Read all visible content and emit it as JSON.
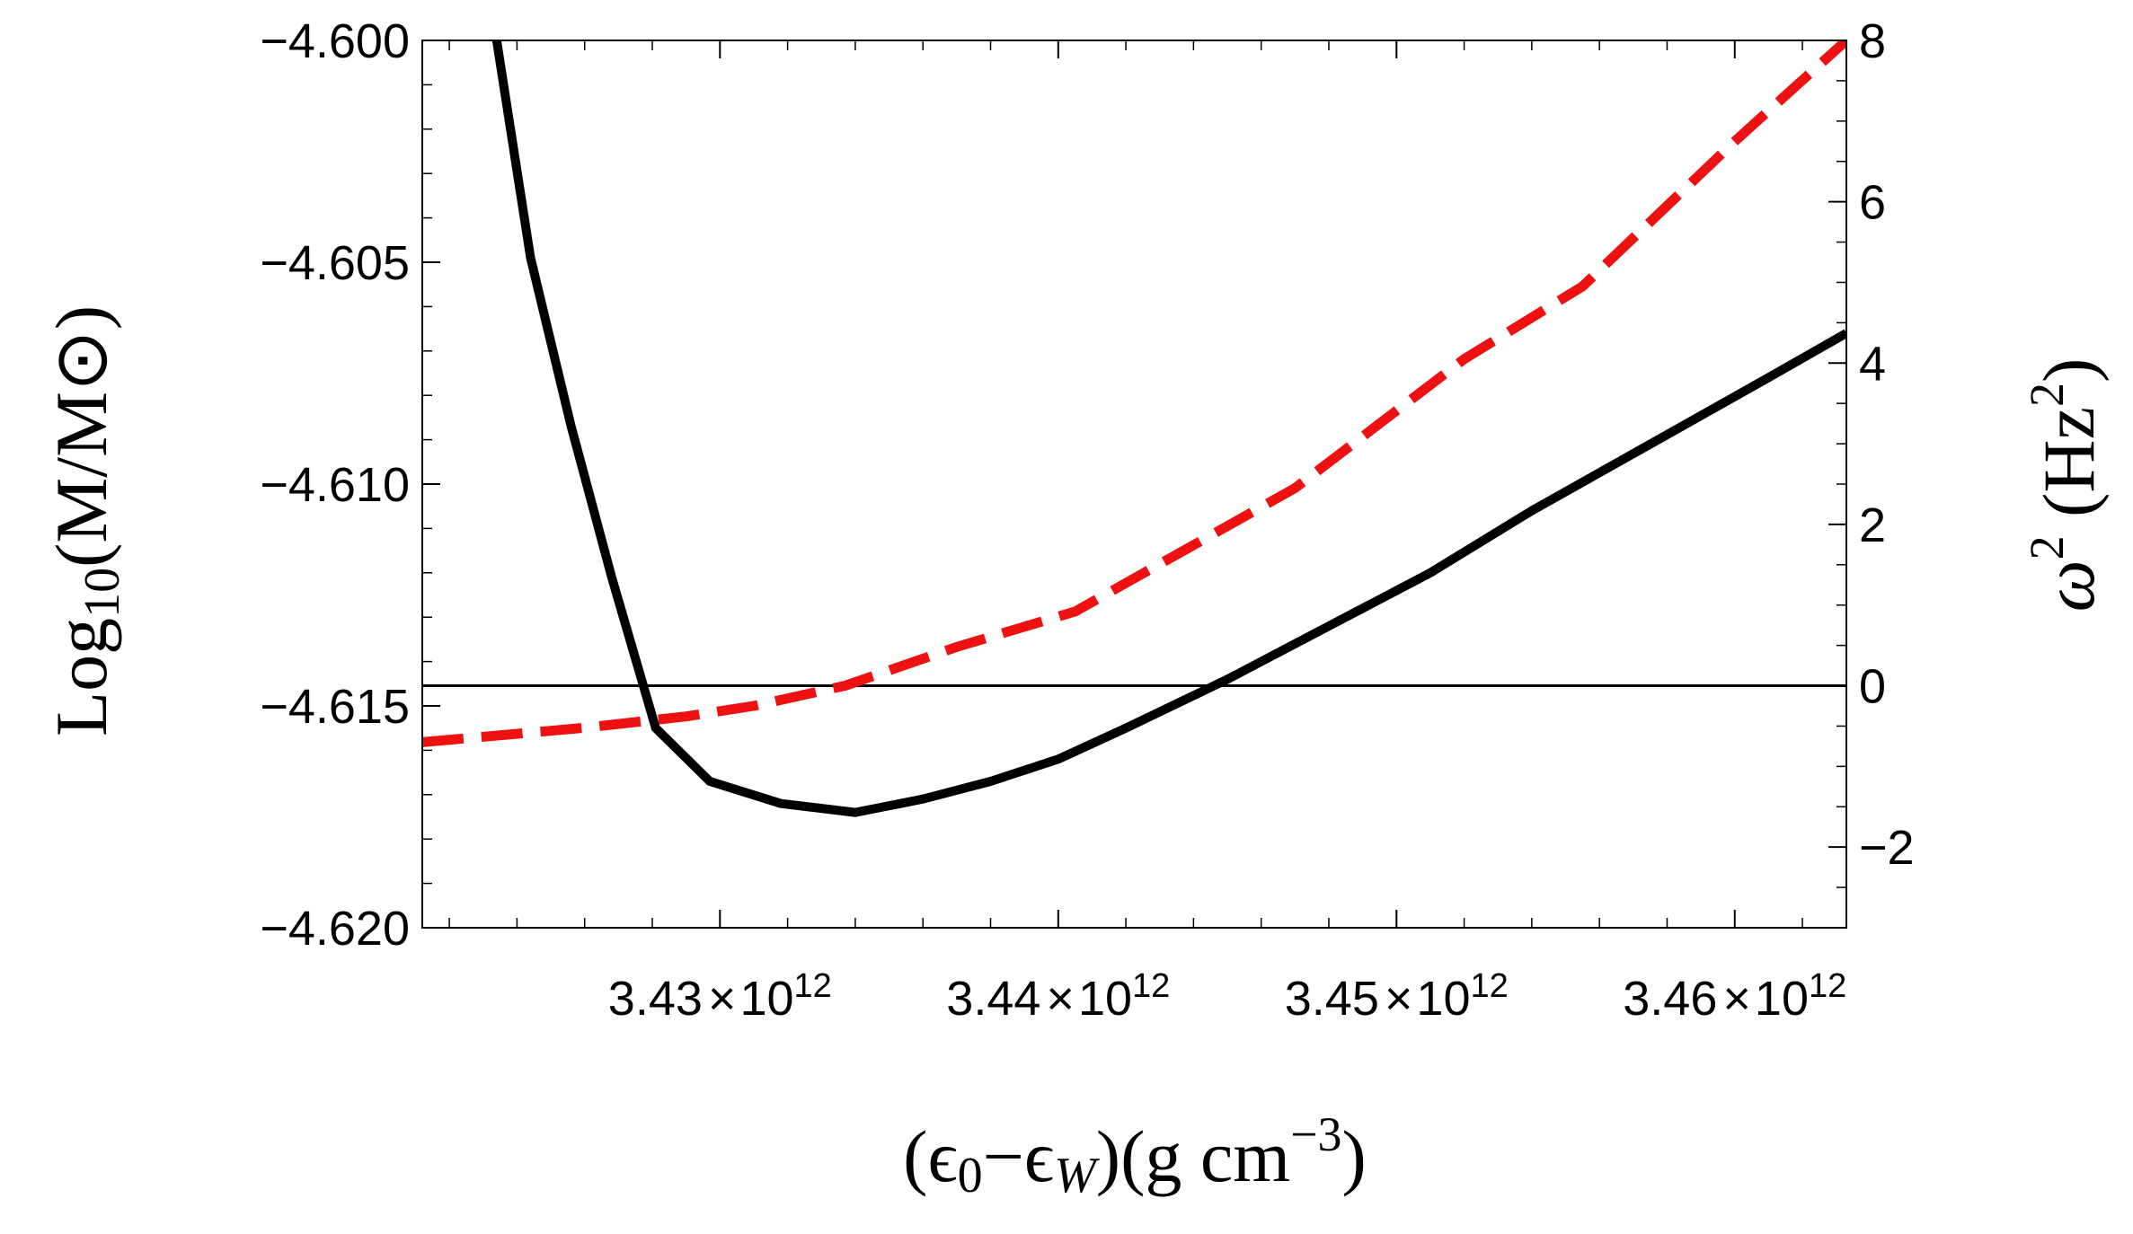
{
  "chart_data": {
    "type": "line",
    "title": "",
    "xlabel": {
      "open": "(",
      "e0_sym": "ϵ",
      "e0_sub": "0",
      "minus": "−",
      "ew_sym": "ϵ",
      "ew_sub": "W",
      "close_open": ")(g cm",
      "exp": "−3",
      "end": ")"
    },
    "ylabel_left": {
      "main": "Log",
      "sub": "10",
      "rest": "(M/M⊙)"
    },
    "ylabel_right": {
      "sym": "ω",
      "sup": "2",
      "unit_open": " (Hz",
      "unit_sup": "2",
      "unit_close": ")"
    },
    "x_range": [
      3421200000000.0,
      3463300000000.0
    ],
    "y_left_range": [
      -4.62,
      -4.6
    ],
    "y_right_range": [
      -3,
      8
    ],
    "x_ticks": [
      {
        "value": 3430000000000.0,
        "mantissa": "3.43",
        "times": "×",
        "base": "10",
        "exp": "12"
      },
      {
        "value": 3440000000000.0,
        "mantissa": "3.44",
        "times": "×",
        "base": "10",
        "exp": "12"
      },
      {
        "value": 3450000000000.0,
        "mantissa": "3.45",
        "times": "×",
        "base": "10",
        "exp": "12"
      },
      {
        "value": 3460000000000.0,
        "mantissa": "3.46",
        "times": "×",
        "base": "10",
        "exp": "12"
      }
    ],
    "y_left_ticks": [
      {
        "value": -4.6,
        "label": "−4.600"
      },
      {
        "value": -4.605,
        "label": "−4.605"
      },
      {
        "value": -4.61,
        "label": "−4.610"
      },
      {
        "value": -4.615,
        "label": "−4.615"
      },
      {
        "value": -4.62,
        "label": "−4.620"
      }
    ],
    "y_right_ticks": [
      {
        "value": 8,
        "label": "8"
      },
      {
        "value": 6,
        "label": "6"
      },
      {
        "value": 4,
        "label": "4"
      },
      {
        "value": 2,
        "label": "2"
      },
      {
        "value": 0,
        "label": "0"
      },
      {
        "value": -2,
        "label": "−2"
      }
    ],
    "grid": false,
    "legend": "none",
    "reference_line": {
      "axis": "right",
      "value": 0,
      "color": "#000000"
    },
    "series": [
      {
        "axis": "left",
        "color": "#000000",
        "style": "solid",
        "points": [
          [
            3423400000000.0,
            -4.6
          ],
          [
            3424400000000.0,
            -4.6049
          ],
          [
            3425600000000.0,
            -4.6087
          ],
          [
            3426800000000.0,
            -4.6121
          ],
          [
            3428100000000.0,
            -4.6155
          ],
          [
            3429700000000.0,
            -4.6167
          ],
          [
            3431800000000.0,
            -4.6172
          ],
          [
            3434000000000.0,
            -4.6174
          ],
          [
            3436000000000.0,
            -4.6171
          ],
          [
            3438000000000.0,
            -4.6167
          ],
          [
            3440000000000.0,
            -4.6162
          ],
          [
            3442000000000.0,
            -4.6155
          ],
          [
            3445000000000.0,
            -4.6144
          ],
          [
            3448000000000.0,
            -4.6132
          ],
          [
            3451000000000.0,
            -4.612
          ],
          [
            3454000000000.0,
            -4.6106
          ],
          [
            3456800000000.0,
            -4.6094
          ],
          [
            3461000000000.0,
            -4.6076
          ],
          [
            3463300000000.0,
            -4.6066
          ]
        ]
      },
      {
        "axis": "right",
        "color": "#ee1111",
        "style": "dashed",
        "points": [
          [
            3421200000000.0,
            -0.7
          ],
          [
            3426000000000.0,
            -0.52
          ],
          [
            3429000000000.0,
            -0.38
          ],
          [
            3431000000000.0,
            -0.25
          ],
          [
            3433700000000.0,
            0.0
          ],
          [
            3437000000000.0,
            0.48
          ],
          [
            3440500000000.0,
            0.92
          ],
          [
            3447000000000.0,
            2.45
          ],
          [
            3452000000000.0,
            4.05
          ],
          [
            3455500000000.0,
            4.95
          ],
          [
            3460000000000.0,
            6.75
          ],
          [
            3463300000000.0,
            8.0
          ]
        ]
      }
    ]
  }
}
